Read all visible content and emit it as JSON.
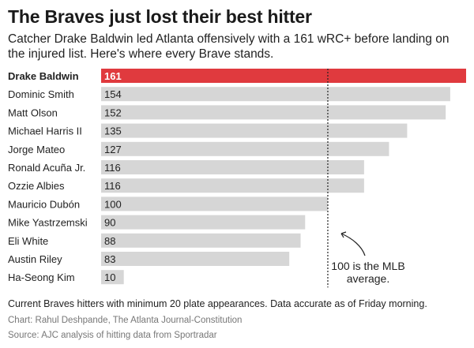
{
  "header": {
    "title": "The Braves just lost their best hitter",
    "subtitle": "Catcher Drake Baldwin led Atlanta offensively with a 161 wRC+ before landing on the injured list. Here's where every Brave stands."
  },
  "footer": {
    "note": "Current Braves hitters with minimum 20 plate appearances. Data accurate as of Friday morning.",
    "credit": "Chart: Rahul Deshpande, The Atlanta Journal-Constitution",
    "source": "Source: AJC analysis of hitting data from Sportradar"
  },
  "colors": {
    "highlight": "#e03a3e",
    "bar": "#d6d6d6",
    "text": "#222222"
  },
  "chart_data": {
    "type": "bar",
    "orientation": "horizontal",
    "categories": [
      "Drake Baldwin",
      "Dominic Smith",
      "Matt Olson",
      "Michael Harris II",
      "Jorge Mateo",
      "Ronald Acuña Jr.",
      "Ozzie Albies",
      "Mauricio Dubón",
      "Mike Yastrzemski",
      "Eli White",
      "Austin Riley",
      "Ha-Seong Kim"
    ],
    "values": [
      161,
      154,
      152,
      135,
      127,
      116,
      116,
      100,
      90,
      88,
      83,
      10
    ],
    "highlight": "Drake Baldwin",
    "xlim": [
      0,
      161
    ],
    "reference_line": {
      "value": 100,
      "label": "100 is the MLB average."
    },
    "grid": false
  }
}
